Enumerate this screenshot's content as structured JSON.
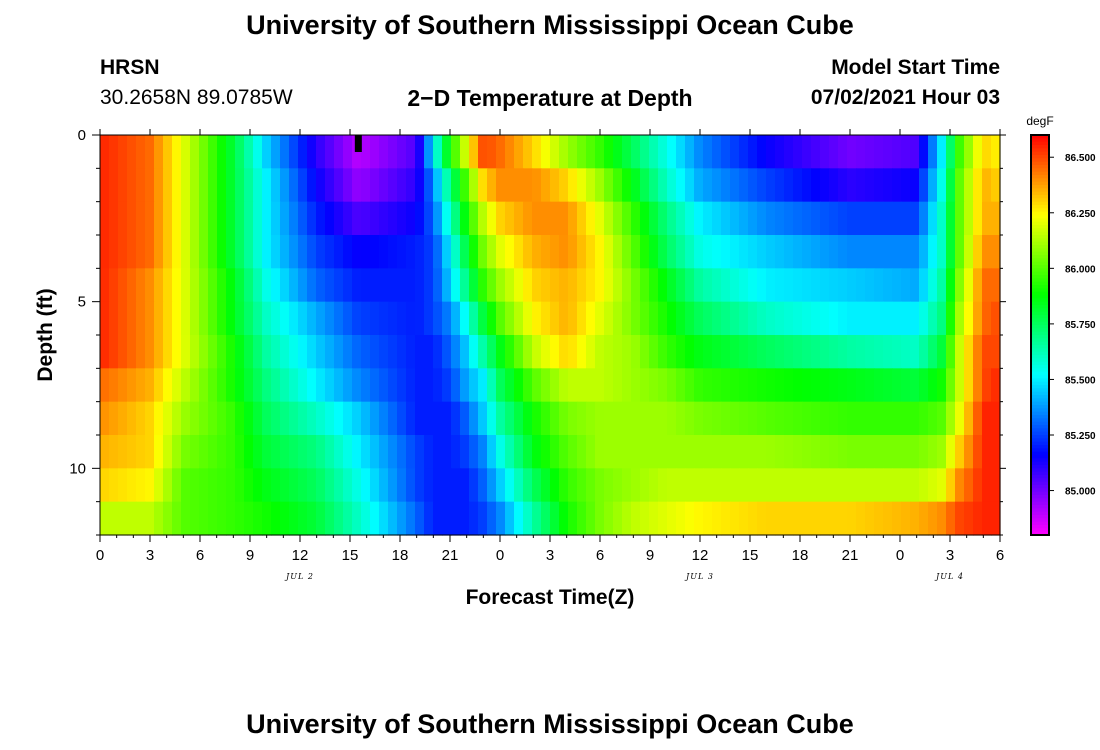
{
  "header": {
    "title": "University of Southern Mississippi Ocean Cube",
    "station": "HRSN",
    "coords": "30.2658N  89.0785W",
    "plot_title": "2−D Temperature at Depth",
    "model_label": "Model Start Time",
    "model_time": "07/02/2021 Hour 03"
  },
  "footer": {
    "title": "University of Southern Mississippi Ocean Cube"
  },
  "chart_data": {
    "type": "heatmap",
    "title": "2−D Temperature at Depth",
    "xlabel": "Forecast Time(Z)",
    "ylabel": "Depth (ft)",
    "x_hours_range": [
      0,
      54
    ],
    "x_tick_hours": [
      0,
      3,
      6,
      9,
      12,
      15,
      18,
      21,
      24,
      27,
      30,
      33,
      36,
      39,
      42,
      45,
      48,
      51,
      54
    ],
    "x_tick_labels": [
      "0",
      "3",
      "6",
      "9",
      "12",
      "15",
      "18",
      "21",
      "0",
      "3",
      "6",
      "9",
      "12",
      "15",
      "18",
      "21",
      "0",
      "3",
      "6"
    ],
    "day_labels": [
      {
        "hour": 12,
        "label": "JUL 2"
      },
      {
        "hour": 36,
        "label": "JUL 3"
      },
      {
        "hour": 51,
        "label": "JUL 4"
      }
    ],
    "y_depth_range": [
      0,
      12
    ],
    "y_tick_depths": [
      0,
      5,
      10
    ],
    "y_tick_labels": [
      "0",
      "5",
      "10"
    ],
    "colorbar": {
      "unit": "degF",
      "min": 84.8,
      "max": 86.6,
      "tick_values": [
        86.5,
        86.25,
        86.0,
        85.75,
        85.5,
        85.25,
        85.0
      ],
      "tick_labels": [
        "86.500",
        "86.250",
        "86.000",
        "85.750",
        "85.500",
        "85.250",
        "85.000"
      ]
    },
    "current_time_marker_hour": 15.5,
    "grid": false,
    "legend": "right",
    "depth_rows": [
      0.5,
      1.5,
      2.5,
      3.5,
      4.5,
      5.5,
      6.5,
      7.5,
      8.5,
      9.5,
      10.5,
      11.5
    ],
    "keyframes": [
      {
        "hour": 0,
        "temps": [
          86.55,
          86.55,
          86.55,
          86.55,
          86.55,
          86.55,
          86.55,
          86.45,
          86.4,
          86.35,
          86.3,
          86.15
        ]
      },
      {
        "hour": 3,
        "temps": [
          86.45,
          86.45,
          86.45,
          86.45,
          86.4,
          86.4,
          86.4,
          86.35,
          86.3,
          86.3,
          86.25,
          86.15
        ]
      },
      {
        "hour": 5,
        "temps": [
          86.2,
          86.2,
          86.2,
          86.2,
          86.2,
          86.2,
          86.2,
          86.15,
          86.1,
          86.05,
          86.0,
          86.0
        ]
      },
      {
        "hour": 8,
        "temps": [
          85.8,
          85.8,
          85.8,
          85.8,
          85.85,
          85.85,
          85.9,
          85.9,
          85.95,
          85.95,
          85.95,
          85.95
        ]
      },
      {
        "hour": 10,
        "temps": [
          85.45,
          85.5,
          85.5,
          85.5,
          85.55,
          85.6,
          85.65,
          85.7,
          85.75,
          85.8,
          85.85,
          85.9
        ]
      },
      {
        "hour": 13,
        "temps": [
          85.1,
          85.15,
          85.2,
          85.25,
          85.3,
          85.4,
          85.45,
          85.5,
          85.6,
          85.7,
          85.75,
          85.8
        ]
      },
      {
        "hour": 15.5,
        "temps": [
          84.9,
          84.95,
          85.05,
          85.15,
          85.2,
          85.25,
          85.3,
          85.35,
          85.45,
          85.5,
          85.55,
          85.6
        ]
      },
      {
        "hour": 19,
        "temps": [
          85.05,
          85.1,
          85.15,
          85.2,
          85.2,
          85.2,
          85.2,
          85.2,
          85.2,
          85.25,
          85.25,
          85.3
        ]
      },
      {
        "hour": 20,
        "temps": [
          85.5,
          85.35,
          85.3,
          85.25,
          85.25,
          85.25,
          85.2,
          85.2,
          85.2,
          85.2,
          85.2,
          85.2
        ]
      },
      {
        "hour": 21,
        "temps": [
          85.9,
          85.7,
          85.6,
          85.5,
          85.45,
          85.35,
          85.3,
          85.25,
          85.2,
          85.2,
          85.2,
          85.2
        ]
      },
      {
        "hour": 22,
        "temps": [
          86.2,
          86.0,
          85.9,
          85.8,
          85.7,
          85.55,
          85.45,
          85.4,
          85.3,
          85.25,
          85.2,
          85.2
        ]
      },
      {
        "hour": 23,
        "temps": [
          86.5,
          86.3,
          86.15,
          86.05,
          85.95,
          85.8,
          85.65,
          85.5,
          85.45,
          85.35,
          85.3,
          85.25
        ]
      },
      {
        "hour": 24,
        "temps": [
          86.45,
          86.4,
          86.3,
          86.2,
          86.1,
          86.0,
          85.85,
          85.75,
          85.65,
          85.55,
          85.45,
          85.35
        ]
      },
      {
        "hour": 26,
        "temps": [
          86.3,
          86.4,
          86.4,
          86.35,
          86.3,
          86.25,
          86.15,
          86.0,
          85.9,
          85.85,
          85.75,
          85.65
        ]
      },
      {
        "hour": 28,
        "temps": [
          86.1,
          86.3,
          86.4,
          86.4,
          86.35,
          86.35,
          86.3,
          86.15,
          86.05,
          86.0,
          85.95,
          85.9
        ]
      },
      {
        "hour": 30,
        "temps": [
          85.95,
          86.1,
          86.2,
          86.25,
          86.25,
          86.2,
          86.15,
          86.15,
          86.1,
          86.1,
          86.05,
          86.05
        ]
      },
      {
        "hour": 32,
        "temps": [
          85.75,
          85.85,
          85.95,
          86.0,
          86.05,
          86.05,
          86.1,
          86.1,
          86.1,
          86.1,
          86.1,
          86.15
        ]
      },
      {
        "hour": 34,
        "temps": [
          85.55,
          85.6,
          85.7,
          85.75,
          85.85,
          85.9,
          85.95,
          86.05,
          86.1,
          86.1,
          86.15,
          86.2
        ]
      },
      {
        "hour": 36,
        "temps": [
          85.35,
          85.4,
          85.5,
          85.55,
          85.65,
          85.75,
          85.85,
          85.95,
          86.05,
          86.1,
          86.15,
          86.25
        ]
      },
      {
        "hour": 40,
        "temps": [
          85.15,
          85.25,
          85.35,
          85.45,
          85.5,
          85.6,
          85.75,
          85.9,
          86.0,
          86.1,
          86.15,
          86.3
        ]
      },
      {
        "hour": 45,
        "temps": [
          85.0,
          85.1,
          85.25,
          85.35,
          85.45,
          85.5,
          85.65,
          85.85,
          85.95,
          86.05,
          86.15,
          86.3
        ]
      },
      {
        "hour": 49,
        "temps": [
          85.05,
          85.15,
          85.25,
          85.35,
          85.4,
          85.5,
          85.6,
          85.8,
          85.95,
          86.05,
          86.15,
          86.35
        ]
      },
      {
        "hour": 50.5,
        "temps": [
          85.5,
          85.55,
          85.6,
          85.6,
          85.65,
          85.7,
          85.8,
          85.9,
          86.0,
          86.1,
          86.2,
          86.4
        ]
      },
      {
        "hour": 51.5,
        "temps": [
          85.95,
          86.0,
          86.0,
          86.0,
          86.05,
          86.1,
          86.15,
          86.15,
          86.2,
          86.3,
          86.4,
          86.5
        ]
      },
      {
        "hour": 53,
        "temps": [
          86.3,
          86.35,
          86.35,
          86.4,
          86.45,
          86.45,
          86.5,
          86.5,
          86.55,
          86.55,
          86.55,
          86.55
        ]
      },
      {
        "hour": 54,
        "temps": [
          86.25,
          86.3,
          86.35,
          86.4,
          86.45,
          86.5,
          86.5,
          86.55,
          86.55,
          86.55,
          86.55,
          86.55
        ]
      }
    ]
  }
}
